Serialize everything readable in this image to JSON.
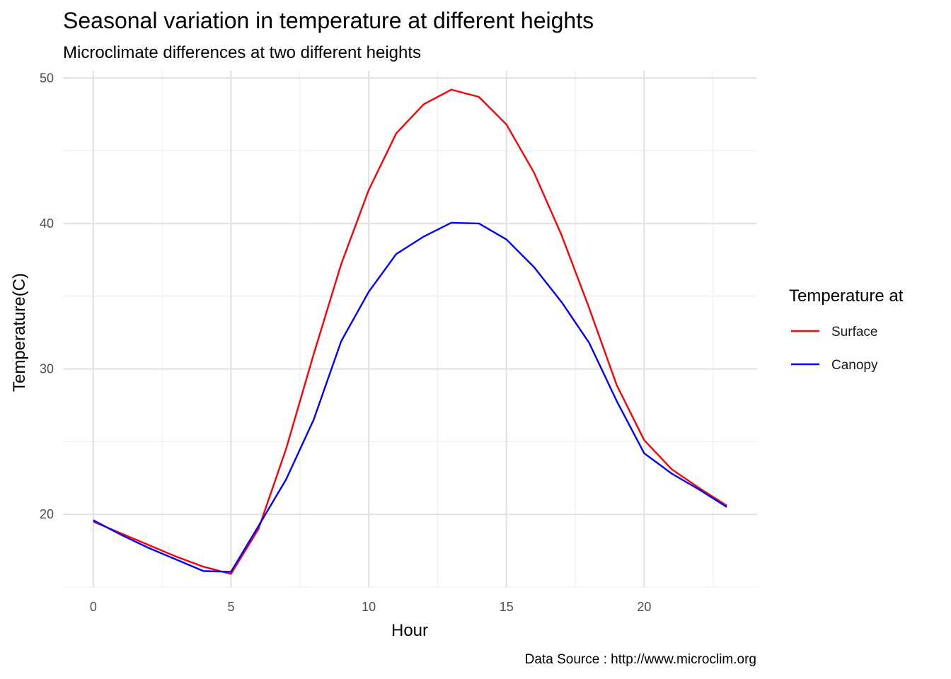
{
  "chart_data": {
    "type": "line",
    "title": "Seasonal variation in temperature at different heights",
    "subtitle": "Microclimate differences at two different heights",
    "xlabel": "Hour",
    "ylabel": "Temperature(C)",
    "caption": "Data Source : http://www.microclim.org",
    "xlim": [
      -1.1,
      24.1
    ],
    "ylim": [
      15,
      50.5
    ],
    "x_ticks": [
      0,
      5,
      10,
      15,
      20
    ],
    "y_ticks": [
      20,
      30,
      40,
      50
    ],
    "grid": true,
    "legend": {
      "title": "Temperature at",
      "position": "right"
    },
    "x": [
      0,
      1,
      2,
      3,
      4,
      5,
      6,
      7,
      8,
      9,
      10,
      11,
      12,
      13,
      14,
      15,
      16,
      17,
      18,
      19,
      20,
      21,
      22,
      23
    ],
    "series": [
      {
        "name": "Surface",
        "color": "#ff0000",
        "values": [
          19.5,
          18.7,
          17.9,
          17.1,
          16.4,
          15.9,
          19.0,
          24.5,
          31.0,
          37.2,
          42.3,
          46.2,
          48.2,
          49.2,
          48.7,
          46.8,
          43.5,
          39.2,
          34.2,
          28.9,
          25.1,
          23.1,
          21.8,
          20.6
        ]
      },
      {
        "name": "Canopy",
        "color": "#0000ff",
        "values": [
          19.6,
          18.6,
          17.7,
          16.9,
          16.1,
          16.05,
          19.2,
          22.4,
          26.5,
          31.9,
          35.3,
          37.9,
          39.1,
          40.05,
          40.0,
          38.9,
          37.0,
          34.6,
          31.8,
          27.8,
          24.2,
          22.8,
          21.7,
          20.5
        ]
      }
    ]
  }
}
